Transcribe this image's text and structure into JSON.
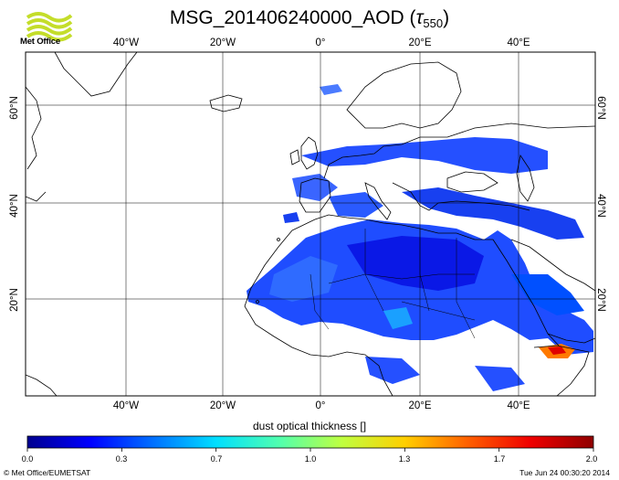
{
  "header": {
    "logo_text": "Met Office",
    "title_main": "MSG_201406240000_AOD (",
    "title_tau": "τ",
    "title_sub": "550",
    "title_close": ")"
  },
  "map": {
    "lon_labels_top": [
      "40°W",
      "20°W",
      "0°",
      "20°E",
      "40°E"
    ],
    "lon_labels_bottom": [
      "40°W",
      "20°W",
      "0°",
      "20°E",
      "40°E"
    ],
    "lat_labels_left": [
      "60°N",
      "40°N",
      "20°N"
    ],
    "lat_labels_right": [
      "60°N",
      "40°N",
      "20°N"
    ],
    "grid": true
  },
  "colorbar": {
    "label": "dust optical thickness []",
    "ticks": [
      "0.0",
      "0.3",
      "0.7",
      "1.0",
      "1.3",
      "1.7",
      "2.0"
    ],
    "range": [
      0.0,
      2.0
    ],
    "colors": [
      "#00008f",
      "#0000ff",
      "#0070ff",
      "#00dfff",
      "#50ffaf",
      "#bfff40",
      "#ffcf00",
      "#ff6000",
      "#ef0000",
      "#8f0000"
    ]
  },
  "footer": {
    "credit": "© Met Office/EUMETSAT",
    "timestamp": "Tue Jun 24 00:30:20 2014"
  }
}
